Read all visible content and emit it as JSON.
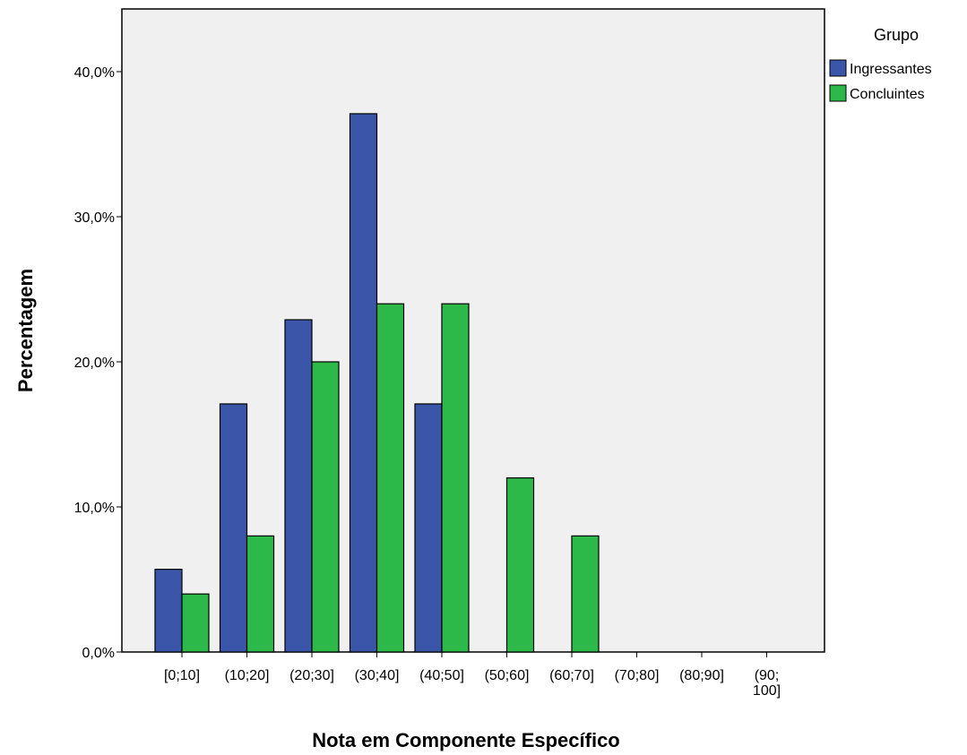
{
  "chart_data": {
    "type": "bar",
    "title": "",
    "xlabel": "Nota em Componente Específico",
    "ylabel": "Percentagem",
    "categories": [
      "[0;10]",
      "(10;20]",
      "(20;30]",
      "(30;40]",
      "(40;50]",
      "(50;60]",
      "(60;70]",
      "(70;80]",
      "(80;90]",
      "(90; 100]"
    ],
    "series": [
      {
        "name": "Ingressantes",
        "color": "#3b56a8",
        "values": [
          5.7,
          17.1,
          22.9,
          37.1,
          17.1,
          0,
          0,
          0,
          0,
          0
        ]
      },
      {
        "name": "Concluintes",
        "color": "#2db84a",
        "values": [
          4.0,
          8.0,
          20.0,
          24.0,
          24.0,
          12.0,
          8.0,
          0,
          0,
          0
        ]
      }
    ],
    "ylim": [
      0,
      44
    ],
    "yticks": [
      0,
      10,
      20,
      30,
      40
    ],
    "ytick_labels": [
      "0,0%",
      "10,0%",
      "20,0%",
      "30,0%",
      "40,0%"
    ],
    "legend": {
      "title": "Grupo",
      "position": "right"
    },
    "plot_background": "#f0f0f0",
    "grid": false
  }
}
